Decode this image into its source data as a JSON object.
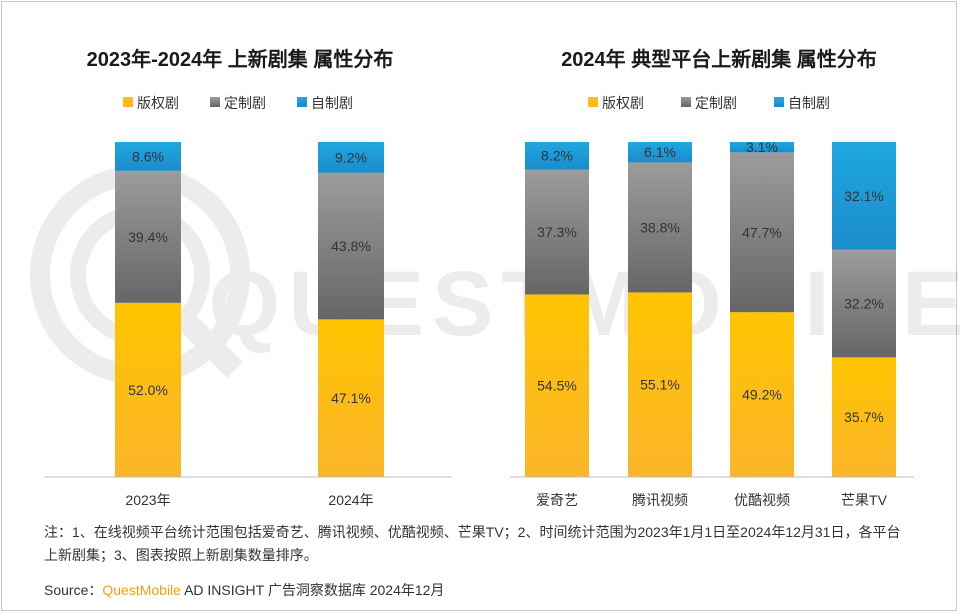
{
  "colors": {
    "licensed": "#ffc000",
    "custom": "#7f7f7f",
    "self_made": "#1f9ad6",
    "brand": "#e8a317"
  },
  "watermark": "QUESTMOBILE",
  "chart_data": [
    {
      "type": "bar",
      "stacked": true,
      "title": "2023年-2024年 上新剧集 属性分布",
      "categories": [
        "2023年",
        "2024年"
      ],
      "series": [
        {
          "name": "版权剧",
          "values": [
            52.0,
            47.1
          ]
        },
        {
          "name": "定制剧",
          "values": [
            39.4,
            43.8
          ]
        },
        {
          "name": "自制剧",
          "values": [
            8.6,
            9.2
          ]
        }
      ],
      "labels": [
        [
          "52.0%",
          "47.1%"
        ],
        [
          "39.4%",
          "43.8%"
        ],
        [
          "8.6%",
          "9.2%"
        ]
      ],
      "ylim": [
        0,
        100
      ],
      "legend": "top"
    },
    {
      "type": "bar",
      "stacked": true,
      "title": "2024年 典型平台上新剧集 属性分布",
      "categories": [
        "爱奇艺",
        "腾讯视频",
        "优酷视频",
        "芒果TV"
      ],
      "series": [
        {
          "name": "版权剧",
          "values": [
            54.5,
            55.1,
            49.2,
            35.7
          ]
        },
        {
          "name": "定制剧",
          "values": [
            37.3,
            38.8,
            47.7,
            32.2
          ]
        },
        {
          "name": "自制剧",
          "values": [
            8.2,
            6.1,
            3.1,
            32.1
          ]
        }
      ],
      "labels": [
        [
          "54.5%",
          "55.1%",
          "49.2%",
          "35.7%"
        ],
        [
          "37.3%",
          "38.8%",
          "47.7%",
          "32.2%"
        ],
        [
          "8.2%",
          "6.1%",
          "3.1%",
          "32.1%"
        ]
      ],
      "ylim": [
        0,
        100
      ],
      "legend": "top"
    }
  ],
  "footer": {
    "note": "注：1、在线视频平台统计范围包括爱奇艺、腾讯视频、优酷视频、芒果TV；2、时间统计范围为2023年1月1日至2024年12月31日，各平台上新剧集；3、图表按照上新剧集数量排序。",
    "source_prefix": "Source：",
    "source_brand": "QuestMobile",
    "source_rest": " AD INSIGHT 广告洞察数据库 2024年12月"
  }
}
